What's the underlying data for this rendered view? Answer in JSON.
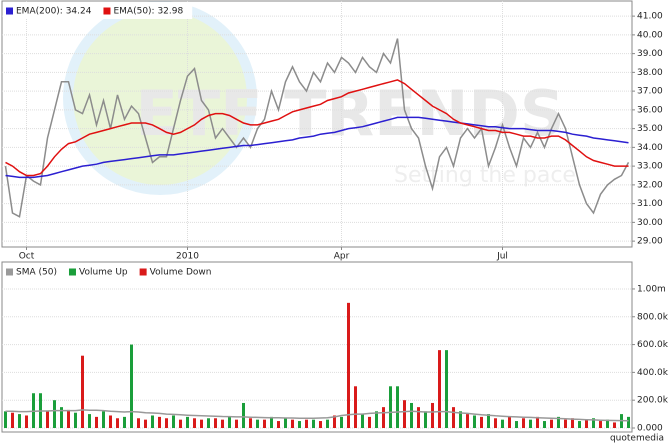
{
  "chart_data": [
    {
      "type": "line",
      "categories": [
        null,
        null,
        null,
        "Oct",
        null,
        null,
        null,
        null,
        null,
        null,
        null,
        null,
        null,
        null,
        null,
        null,
        null,
        null,
        null,
        null,
        null,
        null,
        null,
        null,
        null,
        null,
        "2010",
        null,
        null,
        null,
        null,
        null,
        null,
        null,
        null,
        null,
        null,
        null,
        null,
        null,
        null,
        null,
        null,
        null,
        null,
        null,
        null,
        null,
        "Apr",
        null,
        null,
        null,
        null,
        null,
        null,
        null,
        null,
        null,
        null,
        null,
        null,
        null,
        null,
        null,
        null,
        null,
        null,
        null,
        null,
        null,
        null,
        "Jul",
        null,
        null,
        null,
        null,
        null,
        null,
        null,
        null,
        null,
        null,
        null,
        null,
        null,
        null,
        null,
        null,
        null,
        null
      ],
      "series": [
        {
          "color": "#8c8c8c",
          "values": [
            33.0,
            30.5,
            30.3,
            32.5,
            32.2,
            32.0,
            34.5,
            36.0,
            37.5,
            37.5,
            36.0,
            35.8,
            36.8,
            35.2,
            36.5,
            35.0,
            36.8,
            35.5,
            36.2,
            35.8,
            34.5,
            33.2,
            33.5,
            33.5,
            35.0,
            36.5,
            37.8,
            38.2,
            36.5,
            36.0,
            34.5,
            35.0,
            34.5,
            34.0,
            34.5,
            34.0,
            35.0,
            35.5,
            37.0,
            36.0,
            37.5,
            38.3,
            37.5,
            37.0,
            38.0,
            37.5,
            38.5,
            38.0,
            38.8,
            38.5,
            38.0,
            38.8,
            38.3,
            38.0,
            39.0,
            38.5,
            39.8,
            36.0,
            35.0,
            34.5,
            33.0,
            31.8,
            33.5,
            34.0,
            33.0,
            34.5,
            35.0,
            34.5,
            35.0,
            33.0,
            34.0,
            35.2,
            34.0,
            33.0,
            34.5,
            34.0,
            34.8,
            34.0,
            35.0,
            35.8,
            35.0,
            33.5,
            32.0,
            31.0,
            30.5,
            31.5,
            32.0,
            32.3,
            32.5,
            33.2
          ]
        },
        {
          "name": "EMA(200): 34.24",
          "color": "#2b1fd1",
          "values": [
            32.5,
            32.45,
            32.4,
            32.4,
            32.4,
            32.45,
            32.5,
            32.6,
            32.7,
            32.8,
            32.9,
            33.0,
            33.05,
            33.1,
            33.2,
            33.25,
            33.3,
            33.35,
            33.4,
            33.45,
            33.5,
            33.55,
            33.6,
            33.6,
            33.6,
            33.65,
            33.7,
            33.75,
            33.8,
            33.85,
            33.9,
            33.95,
            34.0,
            34.05,
            34.1,
            34.1,
            34.15,
            34.2,
            34.25,
            34.3,
            34.35,
            34.4,
            34.5,
            34.55,
            34.6,
            34.7,
            34.75,
            34.8,
            34.9,
            35.0,
            35.05,
            35.1,
            35.2,
            35.3,
            35.4,
            35.5,
            35.6,
            35.6,
            35.6,
            35.6,
            35.55,
            35.5,
            35.45,
            35.4,
            35.35,
            35.3,
            35.25,
            35.2,
            35.15,
            35.1,
            35.1,
            35.05,
            35.0,
            35.0,
            35.0,
            34.95,
            34.9,
            34.9,
            34.9,
            34.85,
            34.8,
            34.7,
            34.65,
            34.6,
            34.5,
            34.45,
            34.4,
            34.35,
            34.3,
            34.25
          ]
        },
        {
          "name": "EMA(50): 32.98",
          "color": "#e01010",
          "values": [
            33.2,
            33.0,
            32.7,
            32.5,
            32.5,
            32.6,
            33.0,
            33.5,
            33.9,
            34.2,
            34.3,
            34.5,
            34.7,
            34.8,
            34.9,
            35.0,
            35.1,
            35.2,
            35.3,
            35.3,
            35.3,
            35.2,
            35.0,
            34.8,
            34.7,
            34.8,
            35.0,
            35.2,
            35.5,
            35.7,
            35.8,
            35.8,
            35.7,
            35.5,
            35.3,
            35.2,
            35.2,
            35.3,
            35.4,
            35.5,
            35.7,
            35.9,
            36.0,
            36.1,
            36.2,
            36.3,
            36.5,
            36.6,
            36.7,
            36.9,
            37.0,
            37.1,
            37.2,
            37.3,
            37.4,
            37.5,
            37.6,
            37.4,
            37.1,
            36.8,
            36.5,
            36.2,
            36.0,
            35.8,
            35.5,
            35.3,
            35.2,
            35.1,
            35.0,
            34.9,
            34.9,
            34.8,
            34.8,
            34.7,
            34.6,
            34.6,
            34.5,
            34.5,
            34.6,
            34.6,
            34.4,
            34.1,
            33.8,
            33.5,
            33.3,
            33.2,
            33.1,
            33.0,
            33.0,
            33.0
          ]
        }
      ],
      "ylim": [
        28.9,
        41.7
      ],
      "yticks": [
        {
          "value": 29,
          "label": "29.00"
        },
        {
          "value": 30,
          "label": "30.00"
        },
        {
          "value": 31,
          "label": "31.00"
        },
        {
          "value": 32,
          "label": "32.00"
        },
        {
          "value": 33,
          "label": "33.00"
        },
        {
          "value": 34,
          "label": "34.00"
        },
        {
          "value": 35,
          "label": "35.00"
        },
        {
          "value": 36,
          "label": "36.00"
        },
        {
          "value": 37,
          "label": "37.00"
        },
        {
          "value": 38,
          "label": "38.00"
        },
        {
          "value": 39,
          "label": "39.00"
        },
        {
          "value": 40,
          "label": "40.00"
        },
        {
          "value": 41,
          "label": "41.00"
        }
      ],
      "grid": true
    },
    {
      "type": "bar",
      "series": [
        {
          "name": "SMA (50)",
          "type": "line",
          "color": "#999999",
          "values": [
            120000,
            120000,
            118000,
            118000,
            120000,
            122000,
            122000,
            125000,
            125000,
            125000,
            125000,
            130000,
            128000,
            128000,
            125000,
            120000,
            118000,
            115000,
            118000,
            115000,
            110000,
            108000,
            105000,
            100000,
            98000,
            95000,
            92000,
            90000,
            88000,
            86000,
            85000,
            83000,
            82000,
            80000,
            80000,
            78000,
            76000,
            75000,
            74000,
            73000,
            72000,
            72000,
            70000,
            70000,
            70000,
            72000,
            74000,
            80000,
            90000,
            95000,
            100000,
            100000,
            105000,
            108000,
            110000,
            112000,
            115000,
            118000,
            120000,
            118000,
            115000,
            115000,
            118000,
            118000,
            112000,
            108000,
            105000,
            100000,
            95000,
            92000,
            88000,
            85000,
            82000,
            80000,
            78000,
            76000,
            74000,
            72000,
            70000,
            68000,
            66000,
            64000,
            62000,
            60000,
            58000,
            56000,
            55000,
            54000,
            53000,
            52000
          ]
        },
        {
          "name": "Volume Up",
          "color": "#1a9e3a",
          "values": [
            120000,
            null,
            100000,
            null,
            250000,
            250000,
            null,
            200000,
            150000,
            null,
            110000,
            null,
            100000,
            null,
            120000,
            null,
            null,
            80000,
            600000,
            null,
            null,
            90000,
            null,
            null,
            90000,
            null,
            80000,
            null,
            null,
            70000,
            null,
            null,
            80000,
            null,
            180000,
            null,
            60000,
            null,
            80000,
            null,
            70000,
            null,
            50000,
            null,
            60000,
            null,
            60000,
            null,
            80000,
            null,
            null,
            100000,
            null,
            120000,
            null,
            300000,
            300000,
            null,
            180000,
            null,
            120000,
            null,
            null,
            560000,
            null,
            120000,
            null,
            90000,
            null,
            100000,
            null,
            60000,
            null,
            50000,
            null,
            60000,
            null,
            50000,
            null,
            80000,
            null,
            null,
            50000,
            null,
            70000,
            null,
            60000,
            null,
            100000,
            80000
          ]
        },
        {
          "name": "Volume Down",
          "color": "#d91a1a",
          "values": [
            null,
            110000,
            null,
            90000,
            null,
            null,
            120000,
            null,
            null,
            130000,
            null,
            520000,
            null,
            80000,
            null,
            90000,
            70000,
            null,
            null,
            70000,
            60000,
            null,
            80000,
            70000,
            null,
            60000,
            null,
            70000,
            60000,
            null,
            70000,
            60000,
            null,
            60000,
            null,
            70000,
            null,
            60000,
            null,
            50000,
            null,
            60000,
            null,
            60000,
            null,
            50000,
            null,
            90000,
            null,
            900000,
            300000,
            null,
            80000,
            null,
            150000,
            null,
            null,
            200000,
            null,
            150000,
            null,
            180000,
            560000,
            null,
            150000,
            null,
            100000,
            null,
            80000,
            null,
            70000,
            null,
            80000,
            null,
            70000,
            null,
            80000,
            null,
            60000,
            null,
            60000,
            70000,
            null,
            60000,
            null,
            50000,
            null,
            40000,
            null,
            null
          ]
        }
      ],
      "ylim": [
        0,
        1050000
      ],
      "yticks": [
        {
          "value": 0,
          "label": "0.000"
        },
        {
          "value": 200000,
          "label": "200.0k"
        },
        {
          "value": 400000,
          "label": "400.0k"
        },
        {
          "value": 600000,
          "label": "600.0k"
        },
        {
          "value": 800000,
          "label": "800.0k"
        },
        {
          "value": 1000000,
          "label": "1.00m"
        }
      ],
      "grid": true
    }
  ],
  "watermark": {
    "title": "ETF TRENDS",
    "tagline": "Setting the pace"
  },
  "branding": "quotemedia"
}
